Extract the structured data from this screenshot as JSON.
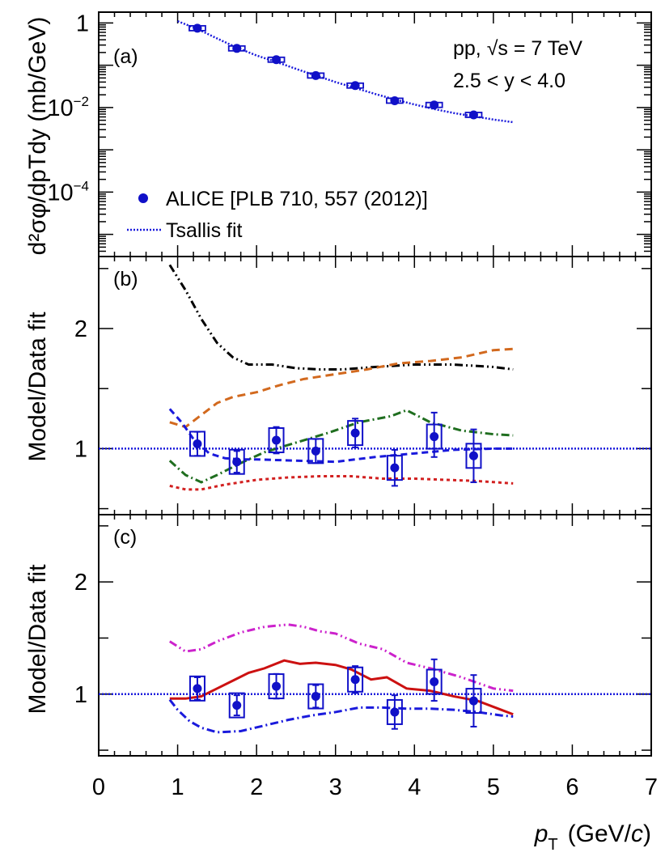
{
  "chart_data": [
    {
      "type": "scatter",
      "panel_label": "(a)",
      "y_scale": "log",
      "ylim": [
        3e-06,
        1.8
      ],
      "xlim": [
        0,
        7
      ],
      "ylabel": "d²σφ/dpTdy (mb/GeV)",
      "y_ticks": [
        {
          "value": 1,
          "mantissa": "1",
          "exp": ""
        },
        {
          "value": 0.01,
          "mantissa": "10",
          "exp": "−2"
        },
        {
          "value": 0.0001,
          "mantissa": "10",
          "exp": "−4"
        }
      ],
      "annotation_lines": [
        "pp, √s = 7 TeV",
        "2.5 < y < 4.0"
      ],
      "legend": [
        {
          "marker": "circle",
          "label": "ALICE [PLB 710, 557 (2012)]"
        },
        {
          "marker": "dotted-line",
          "label": "Tsallis fit"
        }
      ],
      "data_series": {
        "name": "ALICE [PLB 710, 557 (2012)]",
        "x": [
          1.25,
          1.75,
          2.25,
          2.75,
          3.25,
          3.75,
          4.25,
          4.75
        ],
        "y": [
          0.75,
          0.25,
          0.135,
          0.057,
          0.033,
          0.0145,
          0.0115,
          0.0067
        ]
      },
      "fit": {
        "name": "Tsallis fit",
        "x": [
          1.0,
          1.25,
          1.5,
          1.75,
          2.0,
          2.25,
          2.5,
          2.75,
          3.0,
          3.25,
          3.5,
          3.75,
          4.0,
          4.25,
          4.5,
          4.75,
          5.0,
          5.25
        ],
        "y": [
          1.1,
          0.72,
          0.43,
          0.26,
          0.17,
          0.12,
          0.082,
          0.057,
          0.04,
          0.029,
          0.021,
          0.0155,
          0.0118,
          0.0092,
          0.0074,
          0.0062,
          0.0052,
          0.0045
        ]
      }
    },
    {
      "type": "line",
      "panel_label": "(b)",
      "ylim": [
        0.45,
        2.6
      ],
      "xlim": [
        0,
        7
      ],
      "ylabel": "Model/Data fit",
      "y_ticks": [
        1,
        2
      ],
      "data_points": {
        "x": [
          1.25,
          1.75,
          2.25,
          2.75,
          3.25,
          3.75,
          4.25,
          4.75
        ],
        "y": [
          1.04,
          0.89,
          1.07,
          0.98,
          1.13,
          0.84,
          1.1,
          0.94
        ],
        "err_lo": [
          0.1,
          0.09,
          0.11,
          0.1,
          0.12,
          0.15,
          0.17,
          0.22
        ],
        "err_hi": [
          0.1,
          0.09,
          0.11,
          0.1,
          0.12,
          0.15,
          0.2,
          0.22
        ]
      },
      "series": [
        {
          "name": "black-dash-dot",
          "color": "#000000",
          "dash": "10,4,2,4,2,4",
          "x": [
            0.9,
            1.1,
            1.3,
            1.5,
            1.7,
            1.9,
            2.2,
            2.5,
            2.8,
            3.1,
            3.5,
            4.0,
            4.5,
            5.0,
            5.25
          ],
          "y": [
            2.53,
            2.32,
            2.08,
            1.88,
            1.76,
            1.7,
            1.7,
            1.67,
            1.66,
            1.66,
            1.68,
            1.7,
            1.7,
            1.68,
            1.66
          ]
        },
        {
          "name": "orange-dashed",
          "color": "#d2691e",
          "dash": "10,6",
          "x": [
            0.9,
            1.1,
            1.3,
            1.5,
            1.7,
            2.0,
            2.3,
            2.6,
            3.0,
            3.4,
            3.8,
            4.2,
            4.6,
            5.0,
            5.25
          ],
          "y": [
            1.22,
            1.18,
            1.28,
            1.38,
            1.43,
            1.47,
            1.53,
            1.58,
            1.62,
            1.66,
            1.71,
            1.73,
            1.76,
            1.82,
            1.83
          ]
        },
        {
          "name": "green-dash-dot",
          "color": "#1f6e1f",
          "dash": "10,4,2,4",
          "x": [
            0.9,
            1.1,
            1.3,
            1.5,
            1.8,
            2.1,
            2.5,
            2.9,
            3.3,
            3.7,
            3.9,
            4.2,
            4.6,
            5.0,
            5.25
          ],
          "y": [
            0.9,
            0.78,
            0.72,
            0.78,
            0.88,
            0.97,
            1.05,
            1.13,
            1.22,
            1.27,
            1.32,
            1.22,
            1.15,
            1.12,
            1.11
          ]
        },
        {
          "name": "blue-dashed",
          "color": "#1a1adc",
          "dash": "8,5",
          "x": [
            0.9,
            1.05,
            1.2,
            1.4,
            1.6,
            1.8,
            2.0,
            2.5,
            3.0,
            3.5,
            4.0,
            4.5,
            5.0,
            5.25
          ],
          "y": [
            1.33,
            1.22,
            1.08,
            0.96,
            0.92,
            0.91,
            0.91,
            0.9,
            0.89,
            0.93,
            0.96,
            0.99,
            1.0,
            1.0
          ]
        },
        {
          "name": "red-dotted",
          "color": "#d22020",
          "dash": "4,4",
          "x": [
            0.9,
            1.1,
            1.3,
            1.6,
            2.0,
            2.4,
            2.8,
            3.2,
            3.6,
            4.0,
            4.4,
            4.8,
            5.25
          ],
          "y": [
            0.69,
            0.66,
            0.66,
            0.7,
            0.74,
            0.76,
            0.77,
            0.77,
            0.75,
            0.75,
            0.74,
            0.73,
            0.71
          ]
        }
      ]
    },
    {
      "type": "line",
      "panel_label": "(c)",
      "ylim": [
        0.45,
        2.6
      ],
      "xlim": [
        0,
        7
      ],
      "ylabel": "Model/Data fit",
      "xlabel_var": "p",
      "xlabel_sub": "T",
      "xlabel_unit_pre": "(GeV/",
      "xlabel_unit_c": "c",
      "xlabel_unit_post": ")",
      "y_ticks": [
        1,
        2
      ],
      "x_ticks": [
        0,
        1,
        2,
        3,
        4,
        5,
        6,
        7
      ],
      "data_points": {
        "x": [
          1.25,
          1.75,
          2.25,
          2.75,
          3.25,
          3.75,
          4.25,
          4.75
        ],
        "y": [
          1.05,
          0.9,
          1.07,
          0.98,
          1.13,
          0.84,
          1.11,
          0.94
        ],
        "err_lo": [
          0.1,
          0.09,
          0.11,
          0.1,
          0.12,
          0.15,
          0.17,
          0.23
        ],
        "err_hi": [
          0.1,
          0.09,
          0.11,
          0.1,
          0.12,
          0.15,
          0.2,
          0.23
        ]
      },
      "series": [
        {
          "name": "magenta-dash-dot",
          "color": "#cc22cc",
          "dash": "10,4,2,4,2,4",
          "x": [
            0.9,
            1.1,
            1.3,
            1.5,
            1.8,
            2.1,
            2.4,
            2.6,
            2.8,
            3.0,
            3.3,
            3.6,
            3.9,
            4.2,
            4.6,
            5.0,
            5.25
          ],
          "y": [
            1.47,
            1.38,
            1.4,
            1.47,
            1.55,
            1.6,
            1.62,
            1.6,
            1.56,
            1.54,
            1.45,
            1.4,
            1.28,
            1.23,
            1.15,
            1.05,
            1.03
          ]
        },
        {
          "name": "red-solid",
          "color": "#cc1111",
          "dash": "",
          "x": [
            0.9,
            1.1,
            1.3,
            1.5,
            1.7,
            1.9,
            2.1,
            2.35,
            2.55,
            2.75,
            3.0,
            3.2,
            3.45,
            3.65,
            3.9,
            4.2,
            4.5,
            4.8,
            5.1,
            5.25
          ],
          "y": [
            0.96,
            0.96,
            0.98,
            1.05,
            1.12,
            1.19,
            1.23,
            1.3,
            1.27,
            1.28,
            1.26,
            1.22,
            1.13,
            1.15,
            1.05,
            1.03,
            0.98,
            0.94,
            0.86,
            0.82
          ]
        },
        {
          "name": "blue-dash-dot",
          "color": "#1a1adc",
          "dash": "10,4,2,4",
          "x": [
            0.9,
            1.0,
            1.15,
            1.3,
            1.5,
            1.8,
            2.1,
            2.4,
            2.7,
            3.0,
            3.3,
            3.6,
            3.9,
            4.2,
            4.5,
            4.8,
            5.1,
            5.25
          ],
          "y": [
            0.95,
            0.86,
            0.76,
            0.7,
            0.66,
            0.67,
            0.72,
            0.77,
            0.81,
            0.84,
            0.88,
            0.88,
            0.87,
            0.87,
            0.86,
            0.84,
            0.81,
            0.8
          ]
        }
      ]
    }
  ],
  "colors": {
    "data": "#1010c8",
    "unity_line": "#1a1adc",
    "fit": "#1a1adc"
  }
}
